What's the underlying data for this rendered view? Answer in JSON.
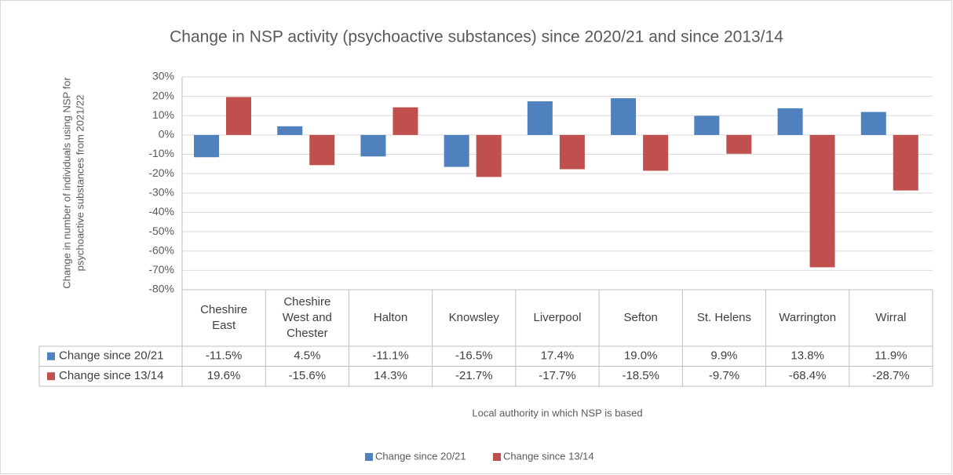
{
  "chart_data": {
    "type": "bar",
    "title": "Change in NSP activity (psychoactive substances) since 2020/21 and since 2013/14",
    "ylabel": [
      "Change in number of individuals using NSP for",
      "psychoactive substances  from 2021/22"
    ],
    "xlabel": "Local authority in which NSP is based",
    "categories": [
      "Cheshire East",
      "Cheshire West and Chester",
      "Halton",
      "Knowsley",
      "Liverpool",
      "Sefton",
      "St. Helens",
      "Warrington",
      "Wirral"
    ],
    "series": [
      {
        "name": "Change since 20/21",
        "color": "#4f81bd",
        "values": [
          -11.5,
          4.5,
          -11.1,
          -16.5,
          17.4,
          19.0,
          9.9,
          13.8,
          11.9
        ],
        "value_labels": [
          "-11.5%",
          "4.5%",
          "-11.1%",
          "-16.5%",
          "17.4%",
          "19.0%",
          "9.9%",
          "13.8%",
          "11.9%"
        ]
      },
      {
        "name": "Change since 13/14",
        "color": "#c0504d",
        "values": [
          19.6,
          -15.6,
          14.3,
          -21.7,
          -17.7,
          -18.5,
          -9.7,
          -68.4,
          -28.7
        ],
        "value_labels": [
          "19.6%",
          "-15.6%",
          "14.3%",
          "-21.7%",
          "-17.7%",
          "-18.5%",
          "-9.7%",
          "-68.4%",
          "-28.7%"
        ]
      }
    ],
    "ylim": [
      -80,
      30
    ],
    "yticks": [
      {
        "value": 30,
        "label": "30%"
      },
      {
        "value": 20,
        "label": "20%"
      },
      {
        "value": 10,
        "label": "10%"
      },
      {
        "value": 0,
        "label": "0%"
      },
      {
        "value": -10,
        "label": "-10%"
      },
      {
        "value": -20,
        "label": "-20%"
      },
      {
        "value": -30,
        "label": "-30%"
      },
      {
        "value": -40,
        "label": "-40%"
      },
      {
        "value": -50,
        "label": "-50%"
      },
      {
        "value": -60,
        "label": "-60%"
      },
      {
        "value": -70,
        "label": "-70%"
      },
      {
        "value": -80,
        "label": "-80%"
      }
    ],
    "grid": true,
    "legend": "bottom"
  }
}
